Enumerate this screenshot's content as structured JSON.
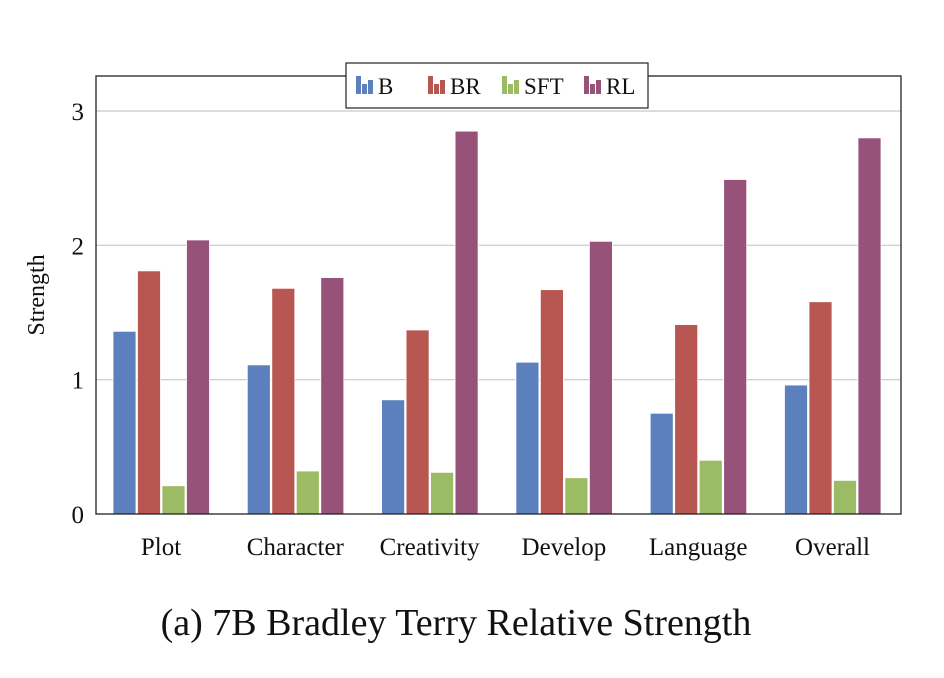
{
  "chart_data": {
    "type": "bar",
    "caption": "(a) 7B Bradley Terry Relative Strength",
    "ylabel": "Strength",
    "xlabel": "",
    "categories": [
      "Plot",
      "Character",
      "Creativity",
      "Develop",
      "Language",
      "Overall"
    ],
    "ylim": [
      0,
      3
    ],
    "yticks": [
      0,
      1,
      2,
      3
    ],
    "grid": "horizontal",
    "legend_position": "top-center",
    "series": [
      {
        "name": "B",
        "color": "#5b80bd",
        "values": [
          1.36,
          1.11,
          0.85,
          1.13,
          0.75,
          0.96
        ]
      },
      {
        "name": "BR",
        "color": "#b85752",
        "values": [
          1.81,
          1.68,
          1.37,
          1.67,
          1.41,
          1.58
        ]
      },
      {
        "name": "SFT",
        "color": "#9bbb64",
        "values": [
          0.21,
          0.32,
          0.31,
          0.27,
          0.4,
          0.25
        ]
      },
      {
        "name": "RL",
        "color": "#975279",
        "values": [
          2.04,
          1.76,
          2.85,
          2.03,
          2.49,
          2.8
        ]
      }
    ]
  }
}
